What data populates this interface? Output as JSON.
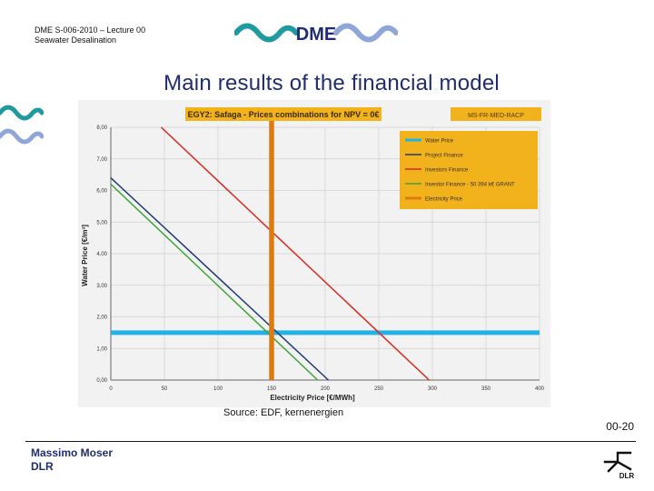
{
  "header": {
    "course_line1": "DME S-006-2010 – Lecture 00",
    "course_line2": "Seawater Desalination",
    "logo_text": "DME",
    "title": "Main results of the financial model"
  },
  "footer": {
    "source": "Source: EDF, kernenergien",
    "slide_number": "00-20",
    "author_name": "Massimo Moser",
    "author_org": "DLR",
    "org_logo_text": "DLR"
  },
  "colors": {
    "navy": "#1f2d6e",
    "wave_dark": "#1e9aa0",
    "wave_light": "#8fa6d8",
    "chart_bg": "#f2f2f2",
    "title_box": "#f2b21b",
    "water_price": "#22b3e6",
    "project_finance": "#1f3a73",
    "investors_finance": "#d7281f",
    "investor_grant": "#3fa535",
    "electricity_price": "#e07a10"
  },
  "chart_data": {
    "type": "line",
    "title": "EGY2: Safaga - Prices combinations for NPV = 0€",
    "scenario_label": "MS-FR-MED-RACP",
    "xlabel": "Electricity Price [€/MWh]",
    "ylabel": "Water Price [€/m³]",
    "xlim": [
      0,
      400
    ],
    "ylim": [
      0,
      8
    ],
    "x_ticks": [
      0,
      50,
      100,
      150,
      200,
      250,
      300,
      350,
      400
    ],
    "x_tick_labels": [
      "0",
      "50",
      "100",
      "150",
      "200",
      "250",
      "300",
      "350",
      "400"
    ],
    "y_ticks": [
      0,
      1,
      2,
      3,
      4,
      5,
      6,
      7,
      8
    ],
    "y_tick_labels": [
      "0,00",
      "1,00",
      "2,00",
      "3,00",
      "4,00",
      "5,00",
      "6,00",
      "7,00",
      "8,00"
    ],
    "grid": true,
    "legend_position": "top-right",
    "series": [
      {
        "name": "Water Price",
        "color": "#22b3e6",
        "x": [
          0,
          400
        ],
        "y": [
          1.5,
          1.5
        ]
      },
      {
        "name": "Project Finance",
        "color": "#1f3a73",
        "x": [
          0,
          203
        ],
        "y": [
          6.4,
          0
        ]
      },
      {
        "name": "Investors Finance",
        "color": "#d7281f",
        "x": [
          47,
          297
        ],
        "y": [
          8.0,
          0
        ]
      },
      {
        "name": "Investor Finance - 50 394 k€ GRANT",
        "color": "#3fa535",
        "x": [
          0,
          193
        ],
        "y": [
          6.2,
          0
        ]
      },
      {
        "name": "Electricity Price",
        "color": "#e07a10",
        "x": [
          150,
          150
        ],
        "y": [
          0,
          8.3
        ]
      }
    ]
  }
}
